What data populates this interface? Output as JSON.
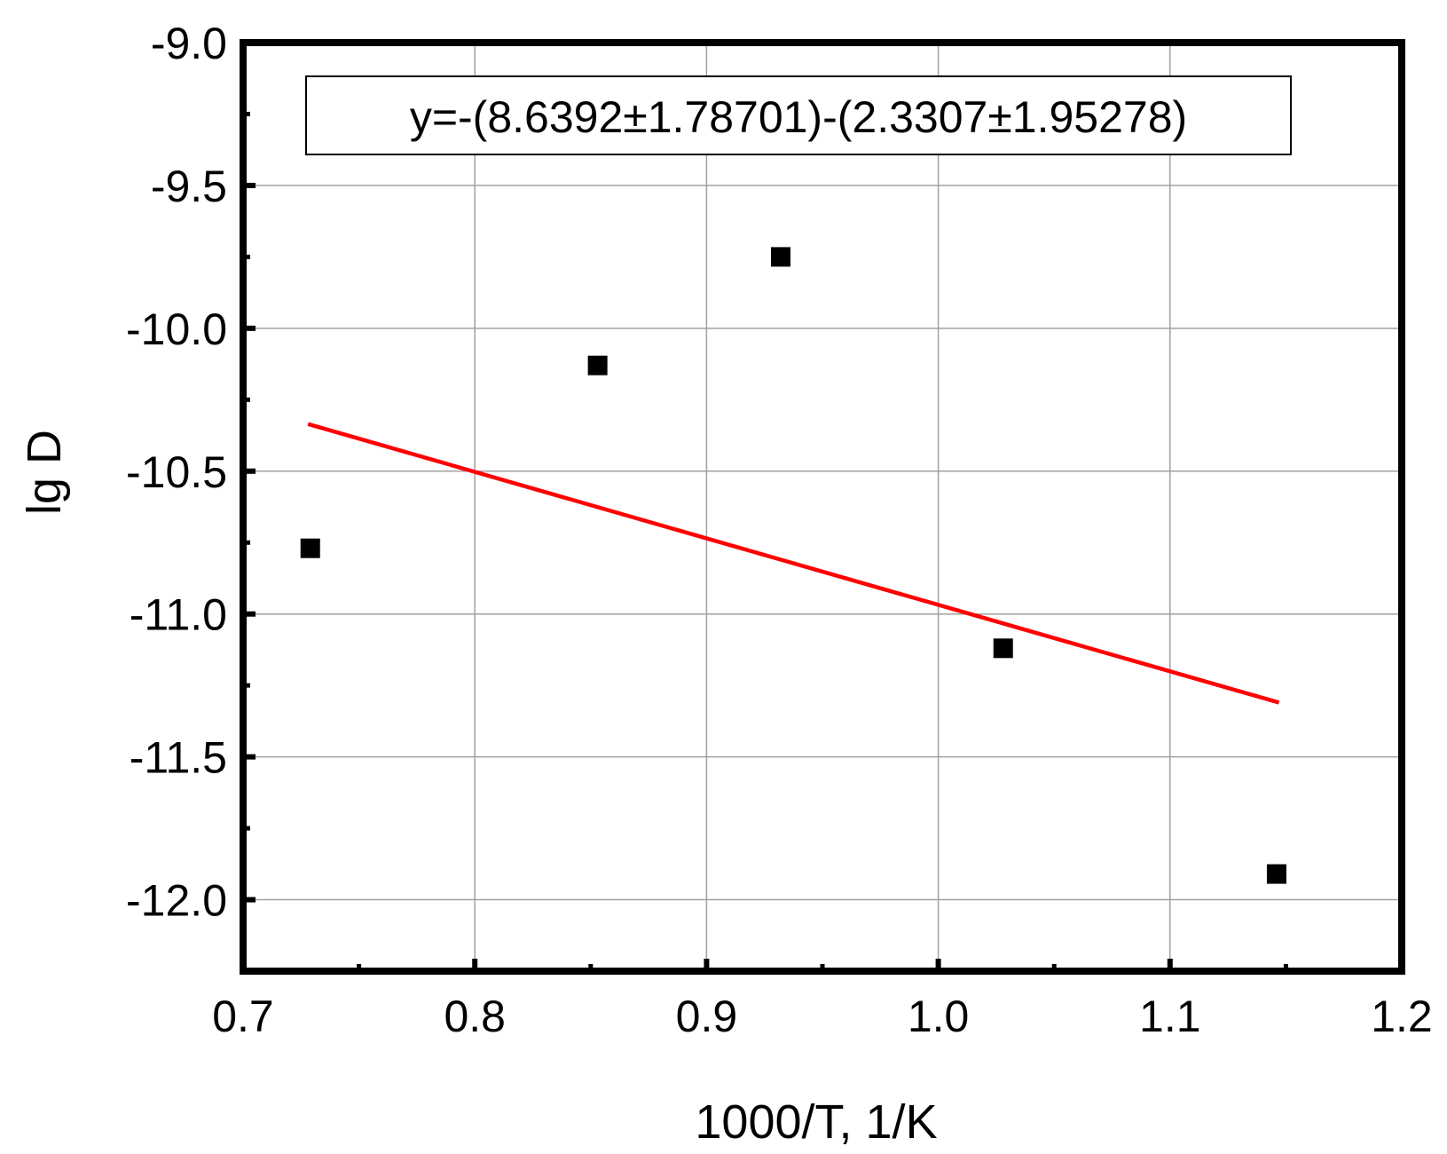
{
  "chart_data": {
    "type": "scatter",
    "xlabel": "1000/T, 1/K",
    "ylabel": "lg D",
    "xlim": [
      0.7,
      1.2
    ],
    "ylim": [
      -12.25,
      -9.0
    ],
    "x_ticks": [
      0.7,
      0.8,
      0.9,
      1.0,
      1.1,
      1.2
    ],
    "y_ticks": [
      -9.0,
      -9.5,
      -10.0,
      -10.5,
      -11.0,
      -11.5,
      -12.0
    ],
    "x_tick_labels": [
      "0.7",
      "0.8",
      "0.9",
      "1.0",
      "1.1",
      "1.2"
    ],
    "y_tick_labels": [
      "-9.0",
      "-9.5",
      "-10.0",
      "-10.5",
      "-11.0",
      "-11.5",
      "-12.0"
    ],
    "grid": true,
    "series": [
      {
        "marker": "square",
        "color": "#000000",
        "points": [
          {
            "x": 0.729,
            "y": -10.77
          },
          {
            "x": 0.853,
            "y": -10.13
          },
          {
            "x": 0.932,
            "y": -9.75
          },
          {
            "x": 1.028,
            "y": -11.12
          },
          {
            "x": 1.146,
            "y": -11.91
          }
        ]
      }
    ],
    "fit_line": {
      "color": "#ff0000",
      "x": [
        0.728,
        1.147
      ],
      "y": [
        -10.335,
        -11.31
      ]
    },
    "annotation": {
      "text": "y=-(8.6392±1.78701)-(2.3307±1.95278)"
    }
  }
}
